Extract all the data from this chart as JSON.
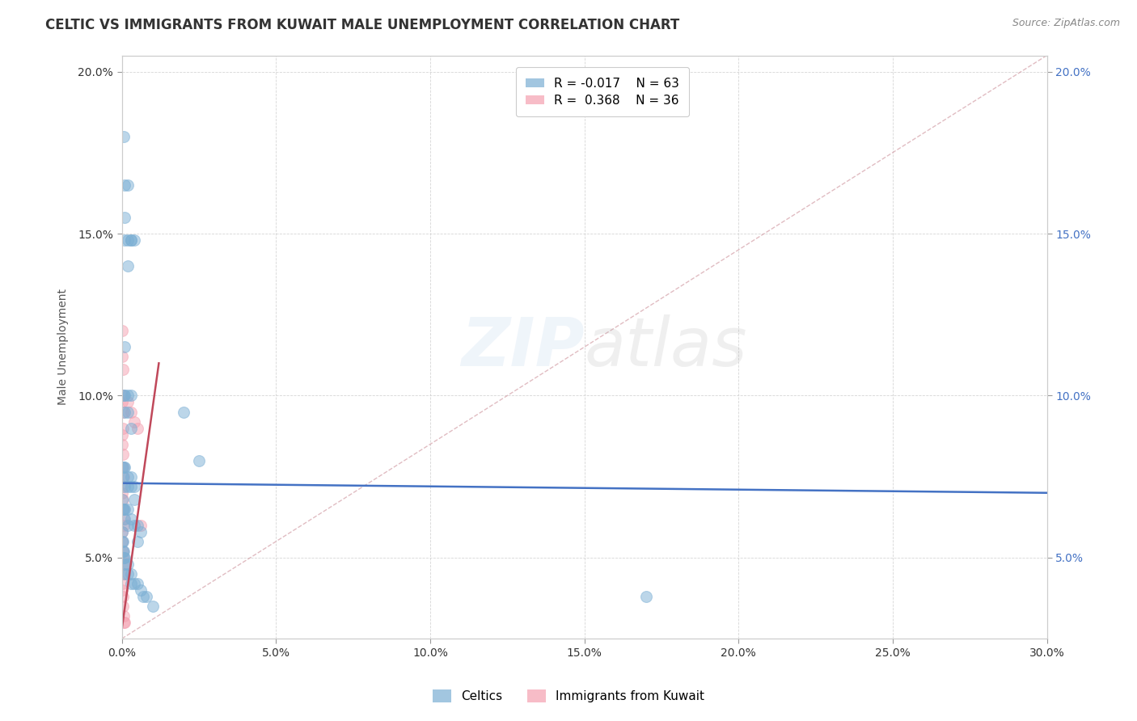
{
  "title": "CELTIC VS IMMIGRANTS FROM KUWAIT MALE UNEMPLOYMENT CORRELATION CHART",
  "source": "Source: ZipAtlas.com",
  "ylabel_text": "Male Unemployment",
  "xlim": [
    0.0,
    0.3
  ],
  "ylim": [
    0.025,
    0.205
  ],
  "xticks": [
    0.0,
    0.05,
    0.1,
    0.15,
    0.2,
    0.25,
    0.3
  ],
  "yticks": [
    0.05,
    0.1,
    0.15,
    0.2
  ],
  "xtick_labels": [
    "0.0%",
    "5.0%",
    "10.0%",
    "15.0%",
    "20.0%",
    "25.0%",
    "30.0%"
  ],
  "ytick_labels": [
    "5.0%",
    "10.0%",
    "15.0%",
    "20.0%"
  ],
  "right_ytick_labels": [
    "5.0%",
    "10.0%",
    "15.0%",
    "20.0%"
  ],
  "celtics_color": "#7bafd4",
  "kuwait_color": "#f4a0b0",
  "celtics_trend_color": "#4472C4",
  "kuwait_trend_color": "#C0485A",
  "diag_line_color": "#d4a0a8",
  "legend_R_celtics": "R = -0.017",
  "legend_N_celtics": "N = 63",
  "legend_R_kuwait": "R =  0.368",
  "legend_N_kuwait": "N = 36",
  "celtics_scatter": [
    [
      0.0005,
      0.18
    ],
    [
      0.0008,
      0.165
    ],
    [
      0.001,
      0.155
    ],
    [
      0.001,
      0.148
    ],
    [
      0.002,
      0.14
    ],
    [
      0.002,
      0.165
    ],
    [
      0.003,
      0.148
    ],
    [
      0.004,
      0.148
    ],
    [
      0.001,
      0.115
    ],
    [
      0.002,
      0.148
    ],
    [
      0.003,
      0.148
    ],
    [
      0.0005,
      0.1
    ],
    [
      0.001,
      0.1
    ],
    [
      0.001,
      0.095
    ],
    [
      0.002,
      0.1
    ],
    [
      0.002,
      0.095
    ],
    [
      0.003,
      0.1
    ],
    [
      0.003,
      0.09
    ],
    [
      0.0002,
      0.078
    ],
    [
      0.0004,
      0.075
    ],
    [
      0.0006,
      0.078
    ],
    [
      0.001,
      0.078
    ],
    [
      0.001,
      0.072
    ],
    [
      0.002,
      0.075
    ],
    [
      0.002,
      0.072
    ],
    [
      0.003,
      0.075
    ],
    [
      0.003,
      0.072
    ],
    [
      0.004,
      0.072
    ],
    [
      0.004,
      0.068
    ],
    [
      0.0002,
      0.068
    ],
    [
      0.0004,
      0.065
    ],
    [
      0.0006,
      0.065
    ],
    [
      0.001,
      0.065
    ],
    [
      0.001,
      0.062
    ],
    [
      0.002,
      0.065
    ],
    [
      0.002,
      0.06
    ],
    [
      0.003,
      0.062
    ],
    [
      0.004,
      0.06
    ],
    [
      0.005,
      0.06
    ],
    [
      0.005,
      0.055
    ],
    [
      0.006,
      0.058
    ],
    [
      0.0001,
      0.058
    ],
    [
      0.0002,
      0.055
    ],
    [
      0.0003,
      0.055
    ],
    [
      0.0004,
      0.052
    ],
    [
      0.0005,
      0.052
    ],
    [
      0.0006,
      0.05
    ],
    [
      0.0008,
      0.05
    ],
    [
      0.001,
      0.048
    ],
    [
      0.001,
      0.045
    ],
    [
      0.002,
      0.048
    ],
    [
      0.002,
      0.045
    ],
    [
      0.003,
      0.045
    ],
    [
      0.003,
      0.042
    ],
    [
      0.004,
      0.042
    ],
    [
      0.005,
      0.042
    ],
    [
      0.006,
      0.04
    ],
    [
      0.007,
      0.038
    ],
    [
      0.008,
      0.038
    ],
    [
      0.01,
      0.035
    ],
    [
      0.02,
      0.095
    ],
    [
      0.025,
      0.08
    ],
    [
      0.17,
      0.038
    ]
  ],
  "kuwait_scatter": [
    [
      0.0001,
      0.12
    ],
    [
      0.0002,
      0.112
    ],
    [
      0.0003,
      0.108
    ],
    [
      0.0001,
      0.1
    ],
    [
      0.0002,
      0.098
    ],
    [
      0.0003,
      0.095
    ],
    [
      0.0004,
      0.09
    ],
    [
      0.0001,
      0.088
    ],
    [
      0.0002,
      0.085
    ],
    [
      0.0003,
      0.082
    ],
    [
      0.0004,
      0.078
    ],
    [
      0.0005,
      0.075
    ],
    [
      0.0001,
      0.072
    ],
    [
      0.0002,
      0.07
    ],
    [
      0.0003,
      0.068
    ],
    [
      0.0004,
      0.065
    ],
    [
      0.0005,
      0.062
    ],
    [
      0.0006,
      0.06
    ],
    [
      0.0001,
      0.058
    ],
    [
      0.0002,
      0.055
    ],
    [
      0.0003,
      0.052
    ],
    [
      0.0004,
      0.05
    ],
    [
      0.0005,
      0.048
    ],
    [
      0.0006,
      0.045
    ],
    [
      0.0001,
      0.042
    ],
    [
      0.0002,
      0.04
    ],
    [
      0.0003,
      0.038
    ],
    [
      0.0004,
      0.035
    ],
    [
      0.0005,
      0.032
    ],
    [
      0.0006,
      0.03
    ],
    [
      0.002,
      0.098
    ],
    [
      0.003,
      0.095
    ],
    [
      0.004,
      0.092
    ],
    [
      0.005,
      0.09
    ],
    [
      0.006,
      0.06
    ],
    [
      0.001,
      0.03
    ]
  ],
  "title_fontsize": 12,
  "axis_fontsize": 10,
  "tick_fontsize": 10,
  "marker_size": 100,
  "marker_alpha": 0.5,
  "background_color": "#ffffff",
  "grid_color": "#cccccc",
  "watermark_color": "#aac8e8",
  "watermark_alpha": 0.18
}
